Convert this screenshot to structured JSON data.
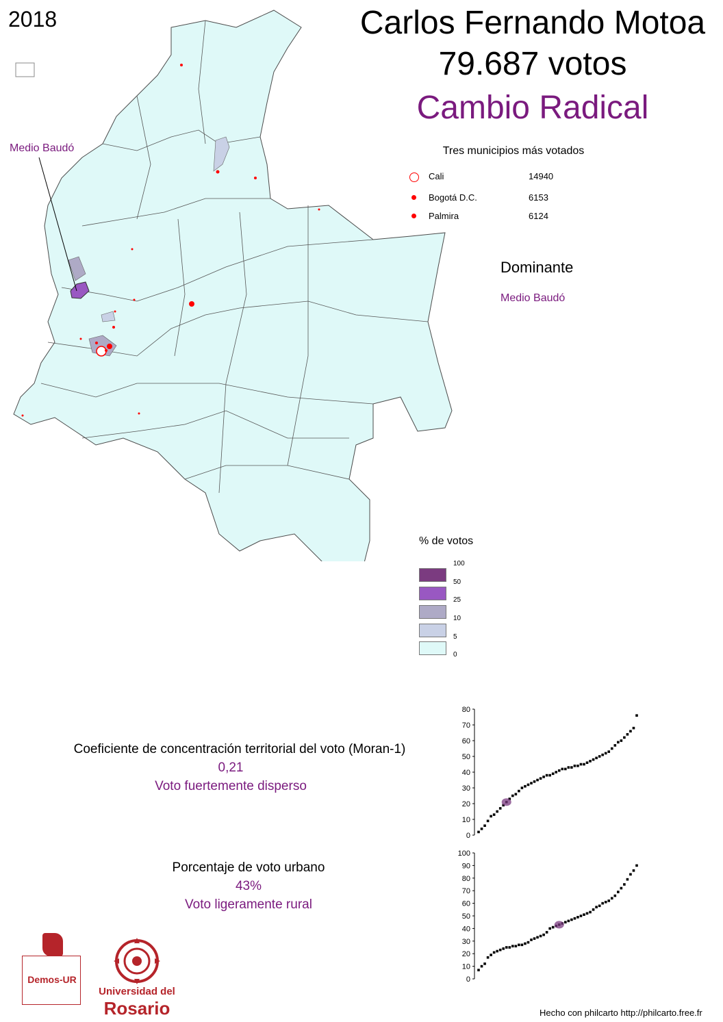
{
  "year": "2018",
  "candidate": "Carlos Fernando Motoa",
  "votes": "79.687 votos",
  "party": "Cambio Radical",
  "colors": {
    "party": "#7a1a7e",
    "marker": "#ff0000",
    "land": "#dff9f8"
  },
  "callout_label": "Medio Baudó",
  "top_municipalities": {
    "title": "Tres municipios más votados",
    "rows": [
      {
        "name": "Cali",
        "value": "14940"
      },
      {
        "name": "Bogotá D.C.",
        "value": "6153"
      },
      {
        "name": "Palmira",
        "value": "6124"
      }
    ]
  },
  "dominant": {
    "title": "Dominante",
    "value": "Medio Baudó"
  },
  "legend": {
    "title": "% de votos",
    "breaks": [
      "100",
      "50",
      "25",
      "10",
      "5",
      "0"
    ],
    "colors": [
      "#7b3b80",
      "#9958c2",
      "#aeaac6",
      "#c9d1e6",
      "#dff9f8"
    ]
  },
  "moran": {
    "label": "Coeficiente de concentración territorial del voto (Moran-1)",
    "value": "0,21",
    "description": "Voto fuertemente disperso"
  },
  "urban": {
    "label": "Porcentaje de voto urbano",
    "value": "43%",
    "description": "Voto ligeramente rural"
  },
  "chart_data": [
    {
      "type": "scatter",
      "name": "moran-distribution",
      "y_ticks": [
        "0",
        "10",
        "20",
        "30",
        "40",
        "50",
        "60",
        "70",
        "80"
      ],
      "ylim": [
        0,
        80
      ],
      "highlight": 21,
      "values": [
        2,
        4,
        6,
        9,
        12,
        13,
        15,
        17,
        19,
        21,
        23,
        25,
        26,
        28,
        30,
        31,
        32,
        33,
        34,
        35,
        36,
        37,
        38,
        38,
        39,
        40,
        41,
        42,
        42,
        43,
        43,
        44,
        44,
        45,
        45,
        46,
        47,
        48,
        49,
        50,
        51,
        52,
        53,
        55,
        57,
        59,
        60,
        62,
        64,
        66,
        68,
        76
      ]
    },
    {
      "type": "scatter",
      "name": "urban-distribution",
      "y_ticks": [
        "0",
        "10",
        "20",
        "30",
        "40",
        "50",
        "60",
        "70",
        "80",
        "90",
        "100"
      ],
      "ylim": [
        0,
        100
      ],
      "highlight": 43,
      "values": [
        7,
        10,
        12,
        17,
        19,
        21,
        22,
        23,
        24,
        25,
        25,
        26,
        26,
        27,
        27,
        28,
        29,
        31,
        32,
        33,
        34,
        35,
        37,
        40,
        41,
        42,
        43,
        44,
        45,
        46,
        47,
        48,
        49,
        50,
        51,
        52,
        53,
        55,
        57,
        58,
        60,
        61,
        62,
        64,
        66,
        69,
        72,
        75,
        79,
        83,
        86,
        90
      ]
    }
  ],
  "logos": {
    "demos": "Demos-UR",
    "rosario_line1": "Universidad del",
    "rosario_line2": "Rosario"
  },
  "footer": "Hecho con philcarto http://philcarto.free.fr"
}
